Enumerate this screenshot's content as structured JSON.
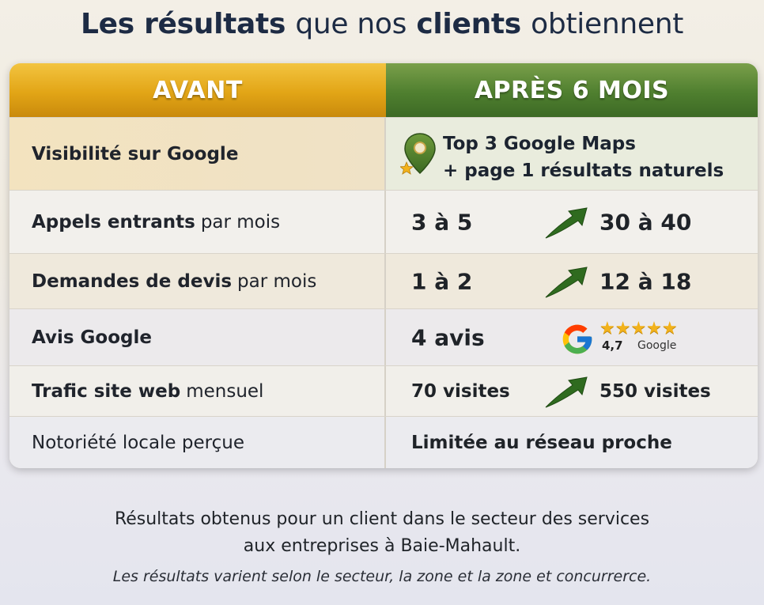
{
  "title": {
    "part1": "Les résultats",
    "part2": "que nos",
    "part3": "clients",
    "part4": "obtiennent"
  },
  "headers": {
    "before": "AVANT",
    "after": "APRÈS 6 MOIS"
  },
  "rows": [
    {
      "label_bold": "Visibilité sur Google",
      "label_rest": "",
      "after_line1": "Top 3 Google Maps",
      "after_line2": "+ page 1 résultats naturels"
    },
    {
      "label_bold": "Appels entrants",
      "label_rest": "par mois",
      "before": "3 à 5",
      "after": "30 à 40"
    },
    {
      "label_bold": "Demandes de devis",
      "label_rest": "par mois",
      "before": "1 à 2",
      "after": "12 à 18"
    },
    {
      "label_bold": "Avis Google",
      "label_rest": "",
      "before": "4 avis",
      "rating": "4,7",
      "google_label": "Google"
    },
    {
      "label_bold": "Trafic site web",
      "label_rest": "mensuel",
      "before": "70 visites",
      "after": "550 visites"
    },
    {
      "label_bold": "",
      "label_rest": "Notoriété locale perçue",
      "value": "Limitée au réseau proche"
    }
  ],
  "stars": {
    "glyphs": "★★★★★",
    "count": 5
  },
  "footer": {
    "line1": "Résultats obtenus pour un client dans le secteur des services",
    "line2": "aux entreprises à Baie-Mahault.",
    "note": "Les résultats varient selon le secteur, la zone et la zone et concurrerce."
  },
  "colors": {
    "gold": "#e2a516",
    "green": "#4f7f2f",
    "arrow": "#2f6b1f",
    "star": "#f2b21b"
  },
  "icons": [
    "map-pin-icon",
    "star-icon",
    "up-arrow-icon",
    "google-logo-icon"
  ]
}
